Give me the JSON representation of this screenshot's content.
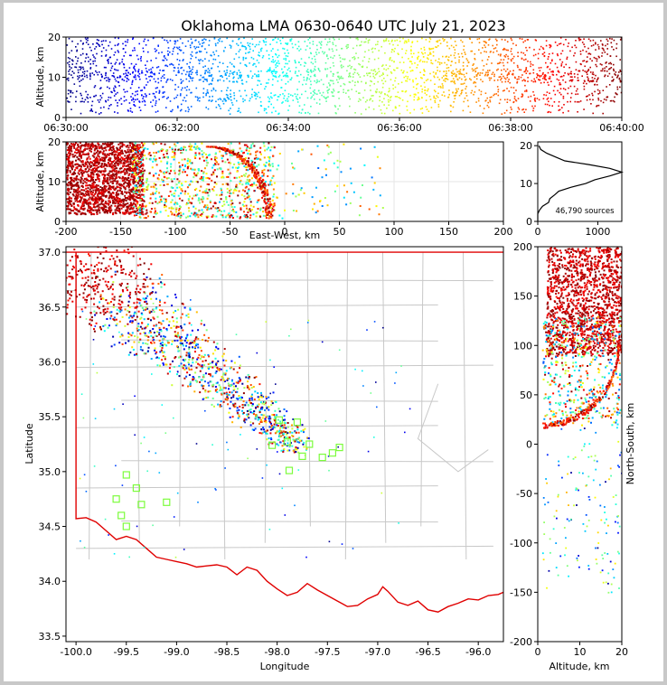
{
  "chart_data": [
    {
      "type": "scatter",
      "name": "time-height",
      "title": "Oklahoma LMA 0630-0640 UTC July 21, 2023",
      "xlabel": "",
      "ylabel": "Altitude, km",
      "x_ticks": [
        "06:30:00",
        "06:32:00",
        "06:34:00",
        "06:36:00",
        "06:38:00",
        "06:40:00"
      ],
      "xlim_minutes": [
        0,
        10
      ],
      "ylim": [
        0,
        20
      ],
      "y_ticks": [
        0,
        10,
        20
      ],
      "altitude_band_km": [
        2,
        20
      ],
      "colormap": "jet (by time)"
    },
    {
      "type": "scatter",
      "name": "east-west-height",
      "xlabel": "East-West, km",
      "ylabel": "Altitude, km",
      "xlim": [
        -200,
        200
      ],
      "x_ticks": [
        -200,
        -150,
        -100,
        -50,
        0,
        50,
        100,
        150,
        200
      ],
      "ylim": [
        0,
        20
      ],
      "y_ticks": [
        0,
        10,
        20
      ],
      "grid": true
    },
    {
      "type": "line",
      "name": "altitude-histogram",
      "xlim": [
        0,
        1400
      ],
      "x_ticks": [
        0,
        1000
      ],
      "ylim": [
        0,
        21
      ],
      "y_ticks": [
        0,
        10,
        20
      ],
      "annotation": "46,790 sources",
      "profile": [
        [
          0,
          0
        ],
        [
          0,
          2
        ],
        [
          30,
          3
        ],
        [
          80,
          4
        ],
        [
          180,
          5
        ],
        [
          200,
          6
        ],
        [
          280,
          7
        ],
        [
          350,
          8
        ],
        [
          550,
          9
        ],
        [
          800,
          10
        ],
        [
          950,
          11
        ],
        [
          1200,
          12
        ],
        [
          1400,
          13
        ],
        [
          1200,
          14
        ],
        [
          850,
          15
        ],
        [
          450,
          16
        ],
        [
          300,
          17
        ],
        [
          150,
          18
        ],
        [
          50,
          19
        ],
        [
          20,
          20
        ]
      ]
    },
    {
      "type": "scatter",
      "name": "plan-view",
      "xlabel": "Longitude",
      "ylabel": "Latitude",
      "xlim": [
        -100.1,
        -95.75
      ],
      "ylim": [
        33.45,
        37.05
      ],
      "x_ticks": [
        -100.0,
        -99.5,
        -99.0,
        -98.5,
        -98.0,
        -97.5,
        -97.0,
        -96.5,
        -96.0
      ],
      "y_ticks": [
        33.5,
        34.0,
        34.5,
        35.0,
        35.5,
        36.0,
        36.5,
        37.0
      ],
      "station_color": "#7cfc3c",
      "stations": [
        [
          -99.6,
          34.75
        ],
        [
          -99.55,
          34.6
        ],
        [
          -99.5,
          34.5
        ],
        [
          -99.4,
          34.85
        ],
        [
          -99.35,
          34.7
        ],
        [
          -99.5,
          34.97
        ],
        [
          -99.1,
          34.72
        ],
        [
          -98.05,
          35.24
        ],
        [
          -97.98,
          35.47
        ],
        [
          -97.9,
          35.27
        ],
        [
          -97.88,
          35.01
        ],
        [
          -97.8,
          35.45
        ],
        [
          -97.75,
          35.14
        ],
        [
          -97.68,
          35.25
        ],
        [
          -97.55,
          35.13
        ],
        [
          -97.45,
          35.17
        ],
        [
          -97.38,
          35.22
        ]
      ]
    },
    {
      "type": "scatter",
      "name": "north-south-height",
      "xlabel": "Altitude, km",
      "ylabel": "North-South, km",
      "xlim": [
        0,
        20
      ],
      "x_ticks": [
        0,
        10,
        20
      ],
      "ylim": [
        -200,
        200
      ],
      "y_ticks": [
        200,
        150,
        100,
        50,
        0,
        -50,
        -100,
        -150,
        -200
      ]
    }
  ]
}
